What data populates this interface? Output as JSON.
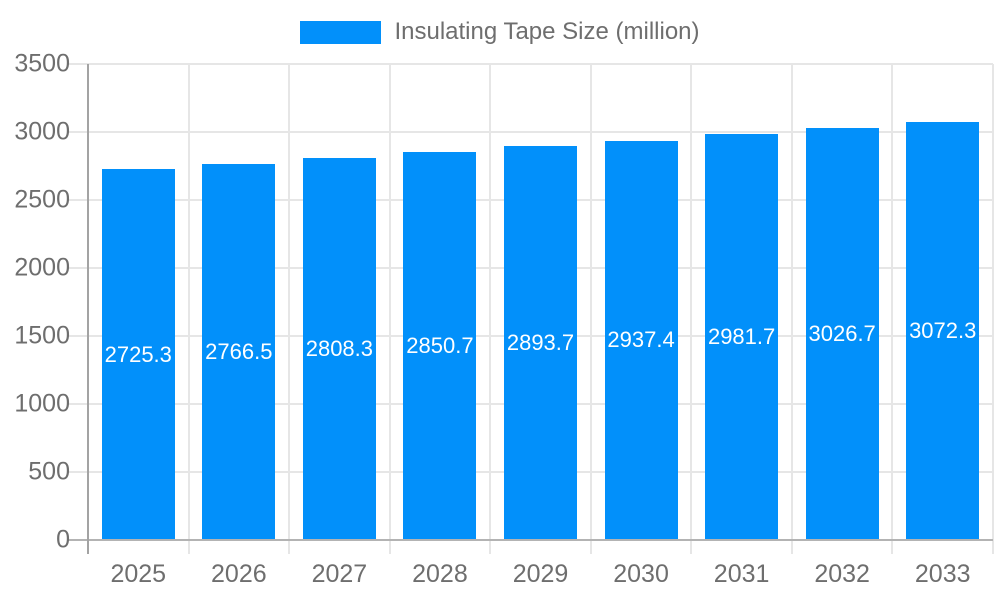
{
  "chart_data": {
    "type": "bar",
    "title": "Insulating Tape Size (million)",
    "categories": [
      "2025",
      "2026",
      "2027",
      "2028",
      "2029",
      "2030",
      "2031",
      "2032",
      "2033"
    ],
    "values": [
      2725.3,
      2766.5,
      2808.3,
      2850.7,
      2893.7,
      2937.4,
      2981.7,
      3026.7,
      3072.3
    ],
    "value_labels": [
      "2725.3",
      "2766.5",
      "2808.3",
      "2850.7",
      "2893.7",
      "2937.4",
      "2981.7",
      "3026.7",
      "3072.3"
    ],
    "xlabel": "",
    "ylabel": "",
    "ylim": [
      0,
      3500
    ],
    "ytick_step": 500,
    "ytick_labels": [
      "0",
      "500",
      "1000",
      "1500",
      "2000",
      "2500",
      "3000",
      "3500"
    ],
    "grid": true,
    "legend_position": "top",
    "colors": {
      "bar": "#0290FA",
      "value_label": "#ffffff",
      "axis_text": "#6e6e6e",
      "legend_text": "#6e6e6e",
      "gridline": "#e6e6e6",
      "baseline": "#b3b3b3",
      "axis_line": "#a3a3a3",
      "background": "#ffffff"
    }
  }
}
